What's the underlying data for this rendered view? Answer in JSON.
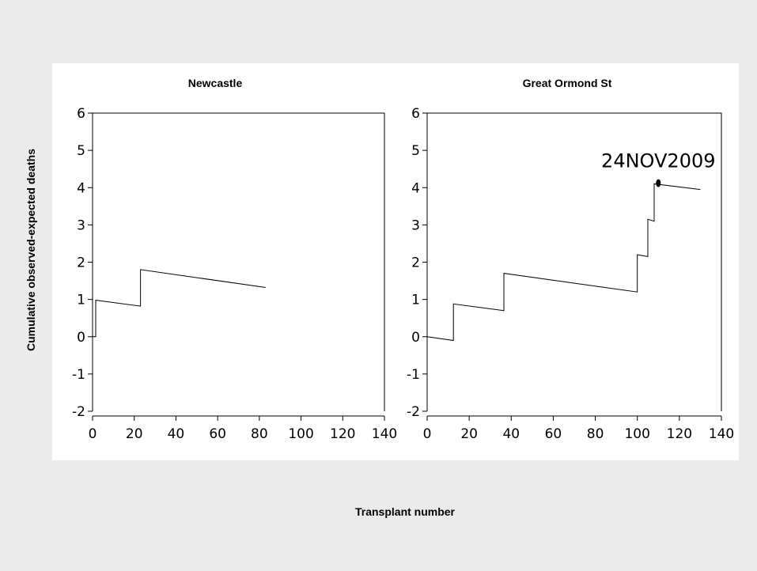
{
  "chart_data": {
    "type": "line",
    "ylabel": "Cumulative observed-expected deaths",
    "xlabel": "Transplant number",
    "xlim": [
      0,
      140
    ],
    "ylim": [
      -2,
      6
    ],
    "x_ticks": [
      0,
      20,
      40,
      60,
      80,
      100,
      120,
      140
    ],
    "y_ticks": [
      -2,
      -1,
      0,
      1,
      2,
      3,
      4,
      5,
      6
    ],
    "grid": false,
    "panels": [
      {
        "title": "Newcastle",
        "series": [
          {
            "points": [
              [
                0,
                0
              ],
              [
                1.5,
                0
              ],
              [
                1.5,
                0.98
              ],
              [
                23,
                0.82
              ],
              [
                23,
                1.8
              ],
              [
                83,
                1.32
              ]
            ]
          }
        ]
      },
      {
        "title": "Great Ormond St",
        "series": [
          {
            "points": [
              [
                0,
                0
              ],
              [
                12.5,
                -0.1
              ],
              [
                12.5,
                0.88
              ],
              [
                36.5,
                0.7
              ],
              [
                36.5,
                1.7
              ],
              [
                100,
                1.2
              ],
              [
                100,
                2.2
              ],
              [
                105,
                2.15
              ],
              [
                105,
                3.15
              ],
              [
                108,
                3.1
              ],
              [
                108,
                4.1
              ],
              [
                130,
                3.95
              ]
            ]
          }
        ],
        "annotation": {
          "text": "24NOV2009",
          "x": 110,
          "y": 4.12
        }
      }
    ]
  }
}
